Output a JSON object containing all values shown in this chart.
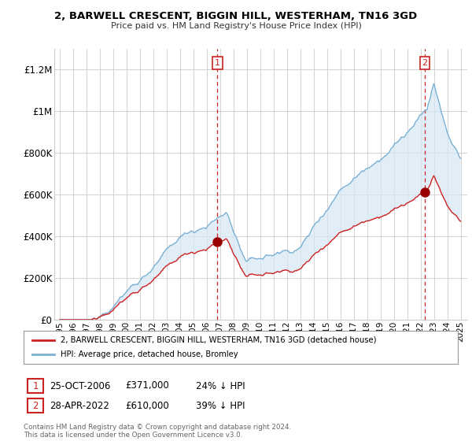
{
  "title": "2, BARWELL CRESCENT, BIGGIN HILL, WESTERHAM, TN16 3GD",
  "subtitle": "Price paid vs. HM Land Registry's House Price Index (HPI)",
  "hpi_color": "#7ab0d4",
  "hpi_fill_color": "#d6e8f5",
  "price_color": "#cc2222",
  "marker_color": "#990000",
  "vline_color": "#cc2222",
  "bg_color": "#ffffff",
  "grid_color": "#cccccc",
  "ytick_labels": [
    "£0",
    "£200K",
    "£400K",
    "£600K",
    "£800K",
    "£1M",
    "£1.2M"
  ],
  "yticks": [
    0,
    200000,
    400000,
    600000,
    800000,
    1000000,
    1200000
  ],
  "legend_label_price": "2, BARWELL CRESCENT, BIGGIN HILL, WESTERHAM, TN16 3GD (detached house)",
  "legend_label_hpi": "HPI: Average price, detached house, Bromley",
  "transaction1_date": "25-OCT-2006",
  "transaction1_price": 371000,
  "transaction1_label": "£371,000",
  "transaction1_pct": "24% ↓ HPI",
  "transaction1_x": 2006.81,
  "transaction2_date": "28-APR-2022",
  "transaction2_price": 610000,
  "transaction2_label": "£610,000",
  "transaction2_pct": "39% ↓ HPI",
  "transaction2_x": 2022.32,
  "footer": "Contains HM Land Registry data © Crown copyright and database right 2024.\nThis data is licensed under the Open Government Licence v3.0.",
  "xtick_years": [
    1995,
    1996,
    1997,
    1998,
    1999,
    2000,
    2001,
    2002,
    2003,
    2004,
    2005,
    2006,
    2007,
    2008,
    2009,
    2010,
    2011,
    2012,
    2013,
    2014,
    2015,
    2016,
    2017,
    2018,
    2019,
    2020,
    2021,
    2022,
    2023,
    2024,
    2025
  ]
}
